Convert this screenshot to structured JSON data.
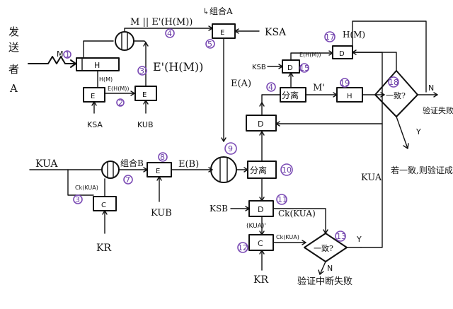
{
  "sender": [
    "发",
    "送",
    "者",
    "A"
  ],
  "labels": {
    "M": "M",
    "H": "H",
    "HM": "H(M)",
    "E_HM_small": "E(H(M))",
    "E": "E",
    "D": "D",
    "C": "C",
    "combo_M": "M || E'(H(M))",
    "E_prime_HM": "E'(H(M))",
    "combo_A": "↳组合A",
    "KSA": "KSA",
    "KSB": "KSB",
    "KUB": "KUB",
    "KUA": "KUA",
    "KR": "KR",
    "E_A": "E(A)",
    "split": "分离",
    "M_prime": "M'",
    "H_M_top": "H(M)",
    "combo_B": "组合B",
    "E_B": "E(B)",
    "C_KUA": "Ck(KUA)",
    "KUA_paren": "(KUA)'",
    "decision": "一致?",
    "N": "N",
    "Y": "Y",
    "verify_fail": "验证失败",
    "verify_success": "若一致,则验证成功.",
    "verify_interrupt_fail": "验证中断失败"
  },
  "step_numbers": [
    "1",
    "2",
    "3",
    "4",
    "5",
    "7",
    "8",
    "9",
    "10",
    "11",
    "12",
    "13",
    "15",
    "17",
    "18",
    "19"
  ],
  "colors": {
    "ink": "#111111",
    "annotation": "#7b4bb5"
  }
}
